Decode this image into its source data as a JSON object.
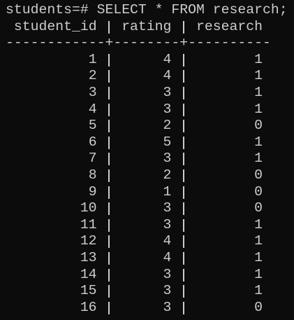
{
  "prompt": "students=# SELECT * FROM research;",
  "table": {
    "headers": [
      "student_id",
      "rating",
      "research"
    ],
    "separator": "------------+--------+----------",
    "rows": [
      [
        1,
        4,
        1
      ],
      [
        2,
        4,
        1
      ],
      [
        3,
        3,
        1
      ],
      [
        4,
        3,
        1
      ],
      [
        5,
        2,
        0
      ],
      [
        6,
        5,
        1
      ],
      [
        7,
        3,
        1
      ],
      [
        8,
        2,
        0
      ],
      [
        9,
        1,
        0
      ],
      [
        10,
        3,
        0
      ],
      [
        11,
        3,
        1
      ],
      [
        12,
        4,
        1
      ],
      [
        13,
        4,
        1
      ],
      [
        14,
        3,
        1
      ],
      [
        15,
        3,
        1
      ],
      [
        16,
        3,
        0
      ]
    ]
  }
}
